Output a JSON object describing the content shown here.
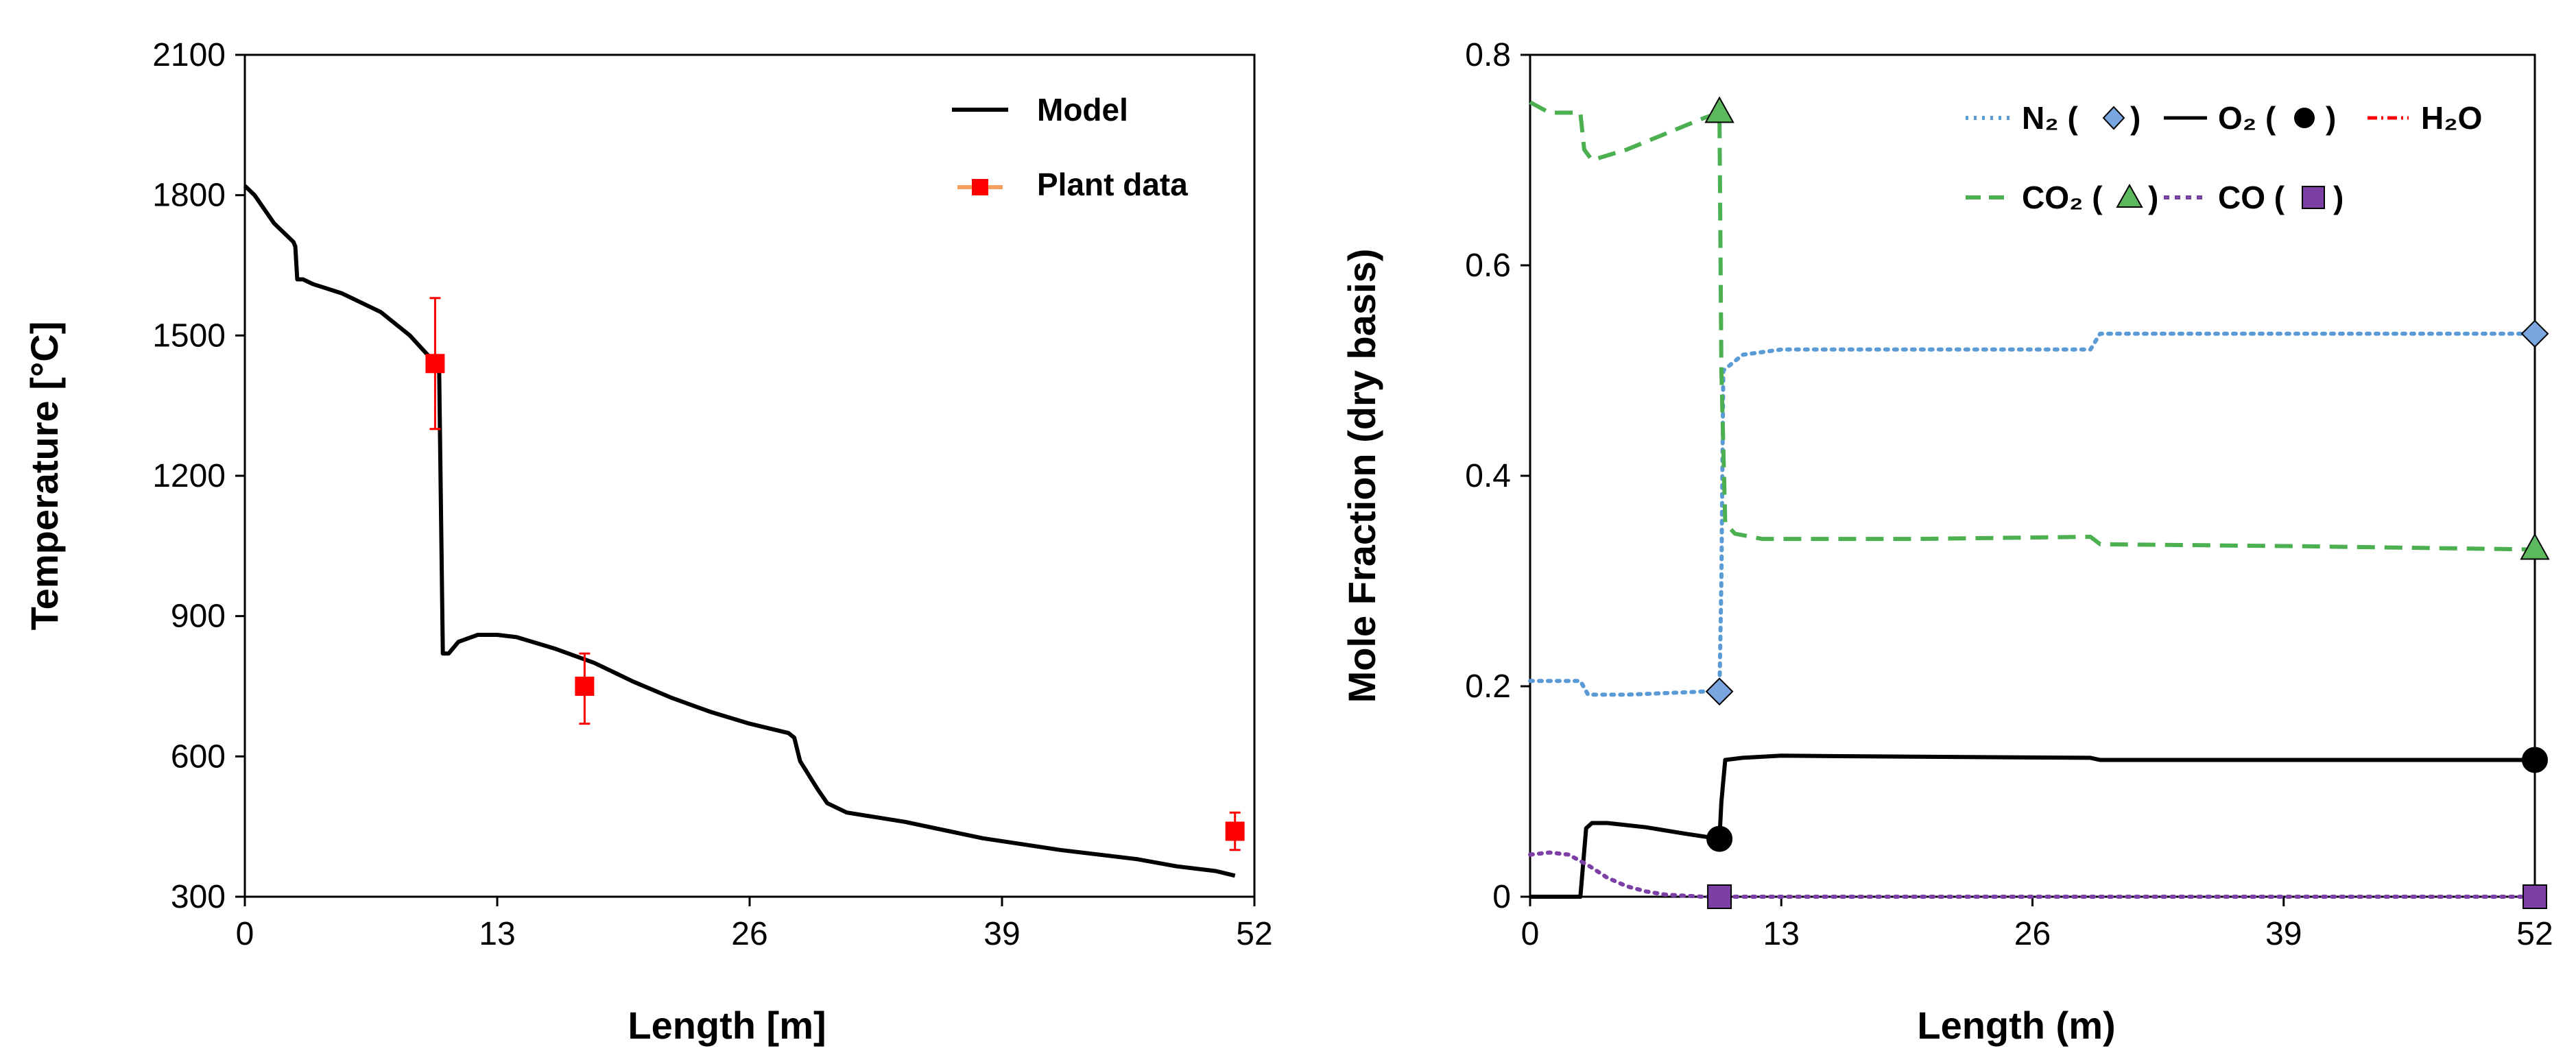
{
  "chart_data": [
    {
      "type": "line",
      "xlabel": "Length [m]",
      "ylabel": "Temperature [°C]",
      "xlim": [
        0,
        52
      ],
      "ylim": [
        300,
        2100
      ],
      "xticks": [
        0,
        13,
        26,
        39,
        52
      ],
      "yticks": [
        300,
        600,
        900,
        1200,
        1500,
        1800,
        2100
      ],
      "xtick_labels": [
        "0",
        "13",
        "26",
        "39",
        "52"
      ],
      "ytick_labels": [
        "300",
        "600",
        "900",
        "1200",
        "1500",
        "1800",
        "2100"
      ],
      "legend_position": "top-right",
      "series": [
        {
          "name": "Model",
          "color": "#000000",
          "style": "solid",
          "x": [
            0,
            0.5,
            1.5,
            2.5,
            2.6,
            2.7,
            3.0,
            3.5,
            5,
            7,
            8.5,
            9.6,
            9.8,
            10.0,
            10.2,
            10.5,
            11,
            12,
            13,
            14,
            16,
            18,
            19,
            20,
            22,
            24,
            26,
            28,
            28.3,
            28.6,
            29.5,
            30,
            31,
            34,
            38,
            42,
            46,
            48,
            50,
            51
          ],
          "y": [
            1820,
            1800,
            1740,
            1700,
            1690,
            1620,
            1620,
            1610,
            1590,
            1550,
            1500,
            1450,
            1440,
            1450,
            820,
            820,
            845,
            860,
            860,
            855,
            830,
            800,
            780,
            760,
            725,
            695,
            670,
            650,
            640,
            590,
            530,
            500,
            480,
            460,
            425,
            400,
            380,
            365,
            355,
            345
          ]
        },
        {
          "name": "Plant data",
          "color": "#ff0000",
          "marker": "square",
          "points": [
            {
              "x": 9.8,
              "y": 1440,
              "err_low": 1300,
              "err_high": 1580
            },
            {
              "x": 17.5,
              "y": 750,
              "err_low": 670,
              "err_high": 820
            },
            {
              "x": 51,
              "y": 440,
              "err_low": 400,
              "err_high": 480
            }
          ]
        }
      ]
    },
    {
      "type": "line",
      "xlabel": "Length (m)",
      "ylabel": "Mole Fraction (dry basis)",
      "xlim": [
        0,
        52
      ],
      "ylim": [
        0,
        0.8
      ],
      "xticks": [
        0,
        13,
        26,
        39,
        52
      ],
      "yticks": [
        0,
        0.2,
        0.4,
        0.6,
        0.8
      ],
      "xtick_labels": [
        "0",
        "13",
        "26",
        "39",
        "52"
      ],
      "ytick_labels": [
        "0",
        "0.2",
        "0.4",
        "0.6",
        "0.8"
      ],
      "legend_position": "top-right",
      "series": [
        {
          "name": "N₂",
          "color": "#5b9bd5",
          "style": "dotted",
          "marker": "diamond",
          "marker_color": "#7aa6e0",
          "x": [
            0,
            2.6,
            3.0,
            5,
            9.0,
            9.8,
            9.9,
            10.0,
            11,
            13,
            20,
            29,
            29.5,
            40,
            52
          ],
          "y": [
            0.205,
            0.205,
            0.192,
            0.192,
            0.195,
            0.195,
            0.3,
            0.5,
            0.515,
            0.52,
            0.52,
            0.52,
            0.535,
            0.535,
            0.535
          ],
          "marker_points": [
            {
              "x": 9.8,
              "y": 0.195
            },
            {
              "x": 52,
              "y": 0.535
            }
          ]
        },
        {
          "name": "O₂",
          "color": "#000000",
          "style": "solid",
          "marker": "circle",
          "marker_color": "#000000",
          "x": [
            0,
            2.6,
            2.9,
            3.2,
            4,
            6,
            8,
            9.8,
            9.9,
            10.1,
            11,
            13,
            20,
            29,
            29.5,
            40,
            52
          ],
          "y": [
            0,
            0,
            0.065,
            0.07,
            0.07,
            0.066,
            0.06,
            0.055,
            0.09,
            0.13,
            0.132,
            0.134,
            0.133,
            0.132,
            0.13,
            0.13,
            0.13
          ],
          "marker_points": [
            {
              "x": 9.8,
              "y": 0.055
            },
            {
              "x": 52,
              "y": 0.13
            }
          ]
        },
        {
          "name": "H₂O",
          "color": "#ff0000",
          "style": "dashdot",
          "x": [],
          "y": []
        },
        {
          "name": "CO₂",
          "color": "#4caf50",
          "style": "dashed",
          "marker": "triangle",
          "marker_color": "#5cb85c",
          "x": [
            0,
            1.0,
            2.6,
            2.8,
            3.2,
            5,
            7,
            9.0,
            9.8,
            9.9,
            10.1,
            10.6,
            12,
            20,
            29,
            29.5,
            40,
            52
          ],
          "y": [
            0.755,
            0.745,
            0.745,
            0.71,
            0.7,
            0.71,
            0.725,
            0.74,
            0.745,
            0.5,
            0.355,
            0.345,
            0.34,
            0.34,
            0.342,
            0.335,
            0.333,
            0.33
          ],
          "marker_points": [
            {
              "x": 9.8,
              "y": 0.745
            },
            {
              "x": 52,
              "y": 0.33
            }
          ]
        },
        {
          "name": "CO",
          "color": "#7b3fa6",
          "style": "dotted",
          "marker": "square",
          "marker_color": "#7b3fa6",
          "x": [
            0,
            1,
            2,
            3,
            4,
            5,
            6,
            7,
            8,
            9,
            9.8,
            20,
            52
          ],
          "y": [
            0.04,
            0.042,
            0.04,
            0.03,
            0.018,
            0.01,
            0.005,
            0.002,
            0.001,
            0.0,
            0.0,
            0.0,
            0.0
          ],
          "marker_points": [
            {
              "x": 9.8,
              "y": 0.0
            },
            {
              "x": 52,
              "y": 0.0
            }
          ]
        }
      ],
      "legend_labels": [
        "N₂ (",
        ")",
        "O₂ (",
        ")",
        "H₂O",
        "CO₂ (",
        ")",
        "CO (",
        ")"
      ]
    }
  ]
}
